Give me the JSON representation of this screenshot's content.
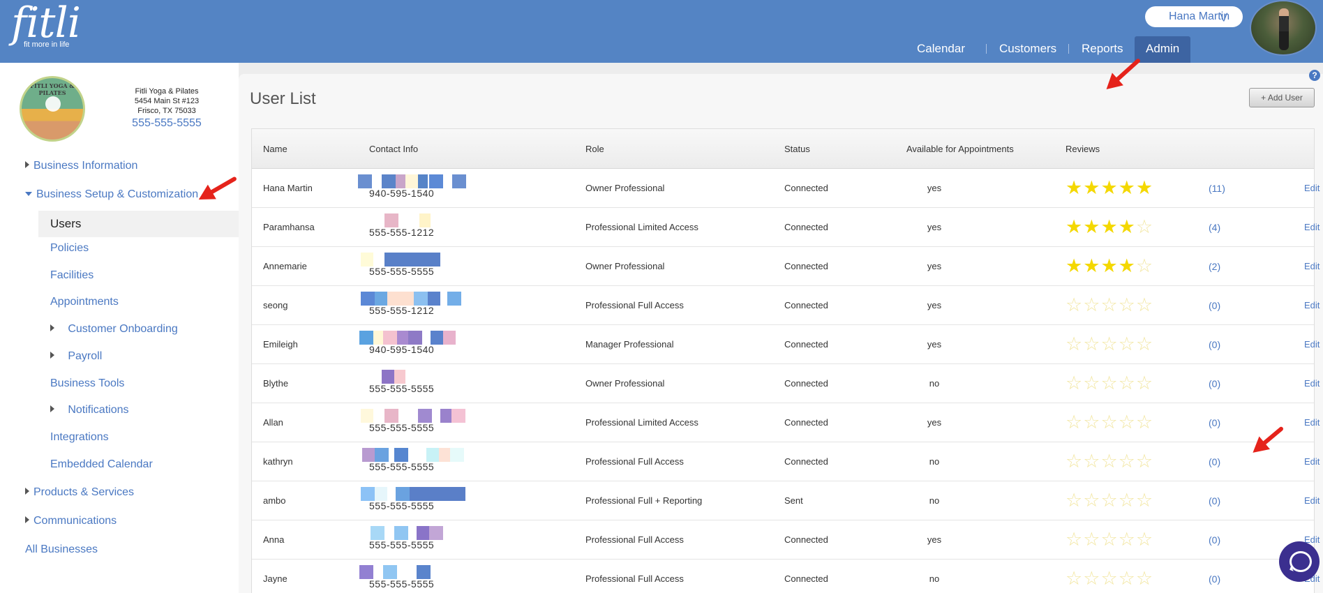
{
  "header": {
    "logo_word": "fitli",
    "logo_tagline": "fit more in life",
    "user_name": "Hana Martin",
    "nav": [
      {
        "label": "Calendar",
        "active": false
      },
      {
        "label": "Customers",
        "active": false
      },
      {
        "label": "Reports",
        "active": false
      },
      {
        "label": "Admin",
        "active": true
      }
    ]
  },
  "business": {
    "logo_text": "FITLI YOGA & PILATES",
    "name": "Fitli Yoga & Pilates",
    "address1": "5454 Main St #123",
    "address2": "Frisco, TX 75033",
    "phone": "555-555-5555"
  },
  "sidebar": {
    "business_information": "Business Information",
    "business_setup": "Business Setup & Customization",
    "users": "Users",
    "policies": "Policies",
    "facilities": "Facilities",
    "appointments": "Appointments",
    "customer_onboarding": "Customer Onboarding",
    "payroll": "Payroll",
    "business_tools": "Business Tools",
    "notifications": "Notifications",
    "integrations": "Integrations",
    "embedded_calendar": "Embedded Calendar",
    "products_services": "Products & Services",
    "communications": "Communications",
    "all_businesses": "All Businesses"
  },
  "main": {
    "title": "User List",
    "add_user_label": "+ Add User",
    "help_label": "?",
    "columns": {
      "name": "Name",
      "contact": "Contact Info",
      "role": "Role",
      "status": "Status",
      "available": "Available for Appointments",
      "reviews": "Reviews"
    },
    "edit_label": "Edit",
    "users": [
      {
        "name": "Hana Martin",
        "phone": "940-595-1540",
        "role": "Owner Professional",
        "status": "Connected",
        "available": "yes",
        "rating": 5,
        "reviews": "(11)"
      },
      {
        "name": "Paramhansa",
        "phone": "555-555-1212",
        "role": "Professional Limited Access",
        "status": "Connected",
        "available": "yes",
        "rating": 4,
        "reviews": "(4)"
      },
      {
        "name": "Annemarie",
        "phone": "555-555-5555",
        "role": "Owner Professional",
        "status": "Connected",
        "available": "yes",
        "rating": 4,
        "reviews": "(2)"
      },
      {
        "name": "seong",
        "phone": "555-555-1212",
        "role": "Professional Full Access",
        "status": "Connected",
        "available": "yes",
        "rating": 0,
        "reviews": "(0)"
      },
      {
        "name": "Emileigh",
        "phone": "940-595-1540",
        "role": "Manager Professional",
        "status": "Connected",
        "available": "yes",
        "rating": 0,
        "reviews": "(0)"
      },
      {
        "name": "Blythe",
        "phone": "555-555-5555",
        "role": "Owner Professional",
        "status": "Connected",
        "available": "no",
        "rating": 0,
        "reviews": "(0)"
      },
      {
        "name": "Allan",
        "phone": "555-555-5555",
        "role": "Professional Limited Access",
        "status": "Connected",
        "available": "yes",
        "rating": 0,
        "reviews": "(0)"
      },
      {
        "name": "kathryn",
        "phone": "555-555-5555",
        "role": "Professional Full Access",
        "status": "Connected",
        "available": "no",
        "rating": 0,
        "reviews": "(0)"
      },
      {
        "name": "ambo",
        "phone": "555-555-5555",
        "role": "Professional Full + Reporting",
        "status": "Sent",
        "available": "no",
        "rating": 0,
        "reviews": "(0)"
      },
      {
        "name": "Anna",
        "phone": "555-555-5555",
        "role": "Professional Full Access",
        "status": "Connected",
        "available": "yes",
        "rating": 0,
        "reviews": "(0)"
      },
      {
        "name": "Jayne",
        "phone": "555-555-5555",
        "role": "Professional Full Access",
        "status": "Connected",
        "available": "no",
        "rating": 0,
        "reviews": "(0)"
      }
    ]
  },
  "colors": {
    "header_bg": "#5484c4",
    "link": "#4a78c2",
    "star_filled": "#f4d800",
    "annotation_arrow": "#e5231b"
  }
}
